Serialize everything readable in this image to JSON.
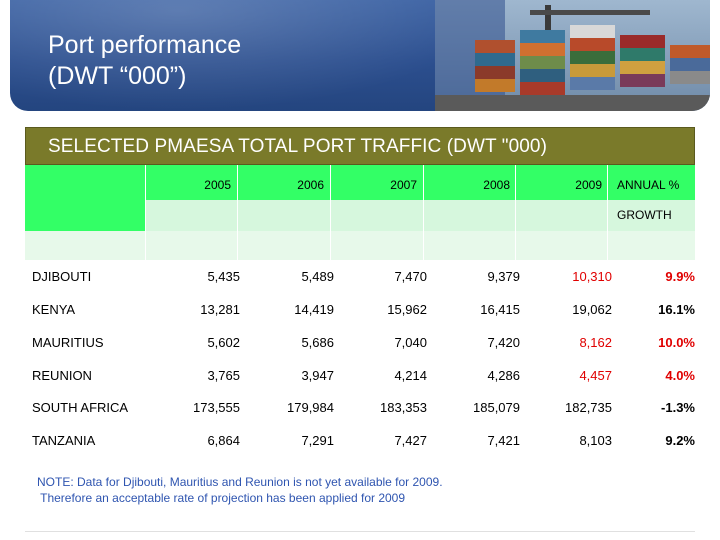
{
  "header": {
    "title_line1": "Port performance",
    "title_line2": "(DWT “000”)",
    "banner_color": "#2c4f8f",
    "photo": "shipping-containers-image"
  },
  "table": {
    "title": "SELECTED PMAESA TOTAL PORT TRAFFIC (DWT \"000)",
    "title_color": "#7a7a2a",
    "header_color": "#33ff66",
    "years": [
      "2005",
      "2006",
      "2007",
      "2008",
      "2009"
    ],
    "growth_label_1": "ANNUAL %",
    "growth_label_2": "GROWTH",
    "rows": [
      {
        "country": "DJIBOUTI",
        "values": [
          "5,435",
          "5,489",
          "7,470",
          "9,379",
          "10,310"
        ],
        "growth": "9.9%"
      },
      {
        "country": "KENYA",
        "values": [
          "13,281",
          "14,419",
          "15,962",
          "16,415",
          "19,062"
        ],
        "growth": "16.1%"
      },
      {
        "country": "MAURITIUS",
        "values": [
          "5,602",
          "5,686",
          "7,040",
          "7,420",
          "8,162"
        ],
        "growth": "10.0%"
      },
      {
        "country": "REUNION",
        "values": [
          "3,765",
          "3,947",
          "4,214",
          "4,286",
          "4,457"
        ],
        "growth": "4.0%"
      },
      {
        "country": "SOUTH AFRICA",
        "values": [
          "173,555",
          "179,984",
          "183,353",
          "185,079",
          "182,735"
        ],
        "growth": "-1.3%"
      },
      {
        "country": "TANZANIA",
        "values": [
          "6,864",
          "7,291",
          "7,427",
          "7,421",
          "8,103"
        ],
        "growth": "9.2%"
      }
    ],
    "highlight_color": "#e00000"
  },
  "note": {
    "line1": "NOTE: Data for Djibouti, Mauritius and Reunion is not yet available for 2009.",
    "line2": " Therefore an acceptable rate of projection has been applied for 2009",
    "color": "#2f55b0"
  }
}
